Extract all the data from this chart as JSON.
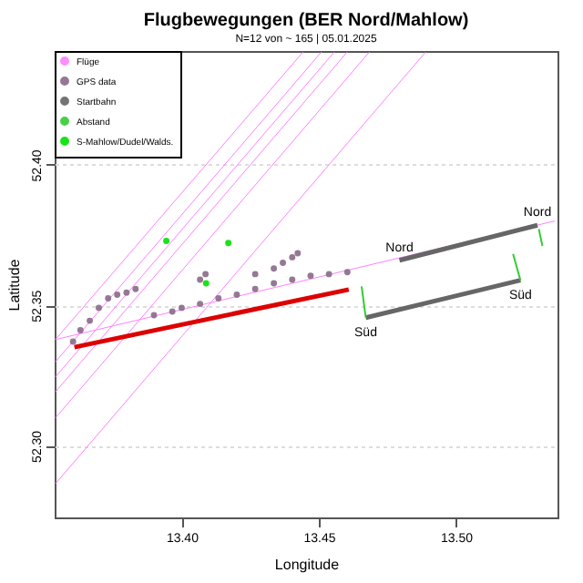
{
  "chart_data": {
    "type": "scatter",
    "title": "Flugbewegungen (BER Nord/Mahlow)",
    "subtitle": "N=12 von ~ 165 | 05.01.2025",
    "xlabel": "Longitude",
    "ylabel": "Latitude",
    "xlim": [
      13.3537,
      13.537
    ],
    "ylim": [
      52.2745,
      52.4405
    ],
    "xticks": [
      {
        "value": 13.4,
        "label": "13.40"
      },
      {
        "value": 13.45,
        "label": "13.45"
      },
      {
        "value": 13.5,
        "label": "13.50"
      }
    ],
    "yticks": [
      {
        "value": 52.3,
        "label": "52.30"
      },
      {
        "value": 52.35,
        "label": "52.35"
      },
      {
        "value": 52.4,
        "label": "52.40"
      }
    ],
    "grid": "y",
    "legend": "top left",
    "series": [
      {
        "type": "line",
        "name": "Flüge",
        "color": "#ff80ff",
        "x": [
          13.354,
          13.4442,
          null,
          13.354,
          13.4509,
          null,
          13.354,
          13.4556,
          null,
          13.354,
          13.4603,
          null,
          13.354,
          13.4684,
          null,
          13.354,
          13.4889,
          null,
          13.354,
          13.536
        ],
        "values": [
          52.3378,
          52.4401,
          null,
          52.3299,
          52.4401,
          null,
          52.3245,
          52.4401,
          null,
          52.3192,
          52.4401,
          null,
          52.3099,
          52.4401,
          null,
          52.2865,
          52.4401,
          null,
          52.3378,
          52.38
        ]
      },
      {
        "name": "GPS data",
        "color": "#8a6a88",
        "x": [
          13.3604,
          13.3631,
          13.3665,
          13.3698,
          13.3732,
          13.3765,
          13.3799,
          13.3832,
          13.3899,
          13.3966,
          13.4,
          13.4067,
          13.4067,
          13.4087,
          13.4134,
          13.4201,
          13.4268,
          13.4268,
          13.4336,
          13.4336,
          13.4369,
          13.4403,
          13.4403,
          13.4423,
          13.447,
          13.4537,
          13.4604
        ],
        "values": [
          52.3371,
          52.3411,
          52.3445,
          52.3491,
          52.3525,
          52.3538,
          52.3545,
          52.3558,
          52.3465,
          52.3478,
          52.3491,
          52.3505,
          52.3591,
          52.3611,
          52.3525,
          52.3538,
          52.3558,
          52.3611,
          52.3578,
          52.3631,
          52.3651,
          52.3591,
          52.3671,
          52.3685,
          52.3605,
          52.3611,
          52.3618
        ]
      },
      {
        "type": "line",
        "color": "#dd0000",
        "x": [
          13.3609,
          13.4609
        ],
        "values": [
          52.3351,
          52.3556
        ]
      },
      {
        "type": "line",
        "name": "Startbahn",
        "color": "#666666",
        "x": [
          13.4794,
          13.5297,
          null,
          13.4671,
          13.5235
        ],
        "values": [
          52.366,
          52.3785,
          null,
          52.3456,
          52.3589
        ]
      },
      {
        "type": "line",
        "name": "Abstand",
        "color": "#33cc33",
        "x": [
          13.4656,
          13.4671,
          null,
          13.5208,
          13.5235,
          null,
          13.5302,
          13.5315
        ],
        "values": [
          52.3567,
          52.3456,
          null,
          52.3683,
          52.3589,
          null,
          52.3771,
          52.3711
        ]
      },
      {
        "type": "scatter",
        "name": "S-Mahlow/Dudel/Walds.",
        "color": "#00e000",
        "x": [
          13.3944,
          13.417,
          13.4089
        ],
        "values": [
          52.3729,
          52.3722,
          52.3578
        ]
      }
    ],
    "annotations": [
      {
        "text": "Nord",
        "x": 13.4794,
        "y": 52.366
      },
      {
        "text": "Nord",
        "x": 13.5297,
        "y": 52.3785
      },
      {
        "text": "Süd",
        "x": 13.4671,
        "y": 52.3456
      },
      {
        "text": "Süd",
        "x": 13.5235,
        "y": 52.3589
      }
    ]
  }
}
